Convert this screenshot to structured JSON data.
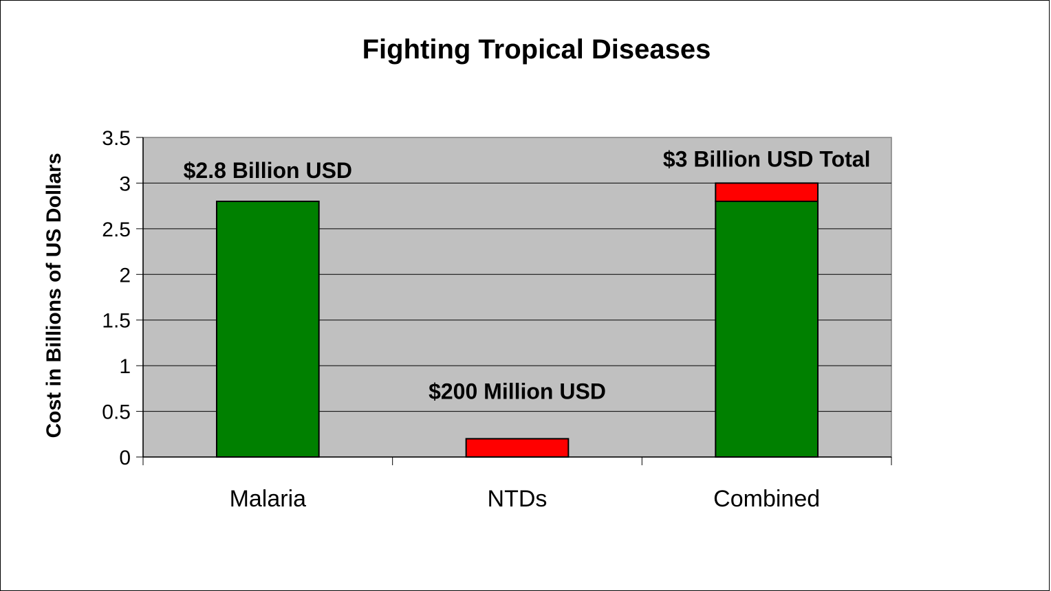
{
  "chart_data": {
    "type": "bar",
    "stacked": true,
    "title": "Fighting Tropical Diseases",
    "xlabel": "",
    "ylabel": "Cost in Billions of US Dollars",
    "categories": [
      "Malaria",
      "NTDs",
      "Combined"
    ],
    "series": [
      {
        "values": [
          2.8,
          0,
          2.8
        ],
        "color": "#008000"
      },
      {
        "values": [
          0,
          0.2,
          0.2
        ],
        "color": "#ff0000"
      }
    ],
    "ylim": [
      0,
      3.5
    ],
    "yticks": [
      "0",
      "0.5",
      "1",
      "1.5",
      "2",
      "2.5",
      "3",
      "3.5"
    ],
    "ytick_values": [
      0,
      0.5,
      1,
      1.5,
      2,
      2.5,
      3,
      3.5
    ],
    "annotations": [
      "$2.8 Billion USD",
      "$200 Million USD",
      "$3 Billion USD Total"
    ],
    "grid": true,
    "plot_background": "#c0c0c0",
    "legend": "none"
  }
}
